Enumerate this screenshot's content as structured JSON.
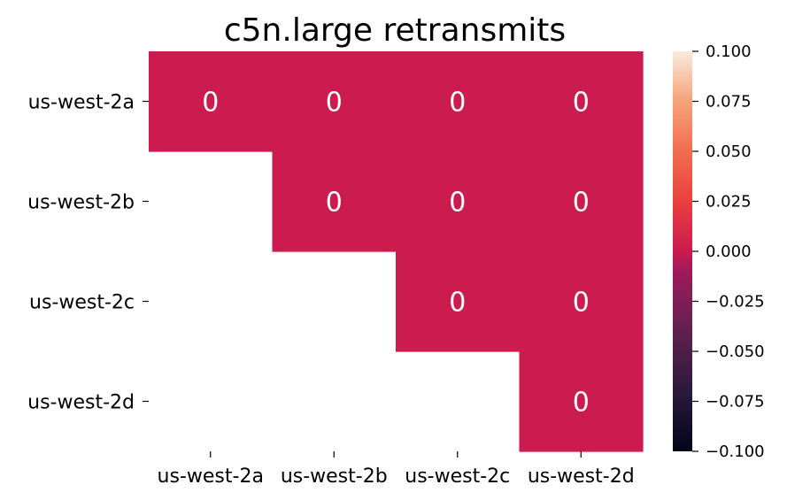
{
  "chart_data": {
    "type": "heatmap",
    "title": "c5n.large retransmits",
    "xlabel": "",
    "ylabel": "",
    "x_categories": [
      "us-west-2a",
      "us-west-2b",
      "us-west-2c",
      "us-west-2d"
    ],
    "y_categories": [
      "us-west-2a",
      "us-west-2b",
      "us-west-2c",
      "us-west-2d"
    ],
    "values": [
      [
        0,
        0,
        0,
        0
      ],
      [
        null,
        0,
        0,
        0
      ],
      [
        null,
        null,
        0,
        0
      ],
      [
        null,
        null,
        null,
        0
      ]
    ],
    "annotations_shown": true,
    "colorbar": {
      "range": [
        -0.1,
        0.1
      ],
      "ticks": [
        "0.100",
        "0.075",
        "0.050",
        "0.025",
        "0.000",
        "−0.025",
        "−0.050",
        "−0.075",
        "−0.100"
      ],
      "colormap": "rocket"
    },
    "cell_color": "#cb1b4f",
    "annotation_color": "#ffffff",
    "masked": "lower triangle (below diagonal) left blank"
  }
}
